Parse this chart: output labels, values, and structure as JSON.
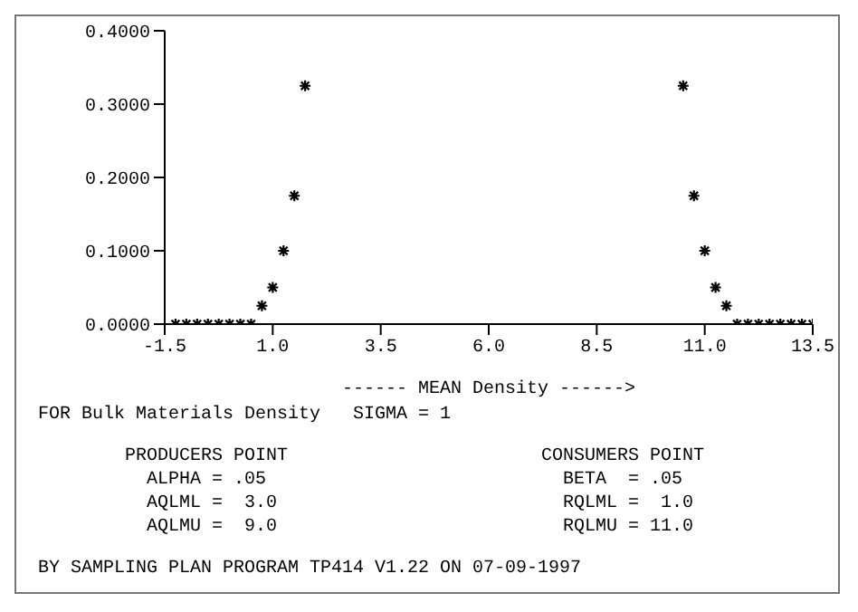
{
  "chart_data": {
    "type": "scatter",
    "xlabel": "------  MEAN Density  ------>",
    "x": [
      -1.25,
      -1,
      -0.75,
      -0.5,
      -0.25,
      0,
      0.25,
      0.5,
      0.75,
      1,
      1.25,
      1.5,
      1.75,
      10.5,
      10.75,
      11,
      11.25,
      11.5,
      11.75,
      12,
      12.25,
      12.5,
      12.75,
      13,
      13.25,
      13.5
    ],
    "series": [
      {
        "color": "#000000",
        "values": [
          0,
          0,
          0,
          0,
          0,
          0,
          0,
          0,
          0.025,
          0.05,
          0.1,
          0.175,
          0.325,
          0.325,
          0.175,
          0.1,
          0.05,
          0.025,
          0,
          0,
          0,
          0,
          0,
          0,
          0,
          0
        ]
      }
    ],
    "xlim": [
      -1.5,
      13.5
    ],
    "xticks": [
      {
        "value": -1.5,
        "label": "-1.5"
      },
      {
        "value": 1,
        "label": "1.0"
      },
      {
        "value": 3.5,
        "label": "3.5"
      },
      {
        "value": 6,
        "label": "6.0"
      },
      {
        "value": 8.5,
        "label": "8.5"
      },
      {
        "value": 11,
        "label": "11.0"
      },
      {
        "value": 13.5,
        "label": "13.5"
      }
    ],
    "ylim": [
      0,
      0.4
    ],
    "yticks": [
      {
        "value": 0,
        "label": "0.0000"
      },
      {
        "value": 0.1,
        "label": "0.1000"
      },
      {
        "value": 0.2,
        "label": "0.2000"
      },
      {
        "value": 0.3,
        "label": "0.3000"
      },
      {
        "value": 0.4,
        "label": "0.4000"
      }
    ],
    "marker": "cross",
    "grid": false,
    "legend": false,
    "annotations": [
      "FOR Bulk Materials Density   SIGMA = 1",
      "PRODUCERS POINT",
      "ALPHA = .05",
      "AQLML =  3.0",
      "AQLMU =  9.0",
      "CONSUMERS POINT",
      "BETA  = .05",
      "RQLML =  1.0",
      "RQLMU = 11.0",
      "BY SAMPLING PLAN PROGRAM TP414 V1.22 ON 07-09-1997"
    ]
  }
}
